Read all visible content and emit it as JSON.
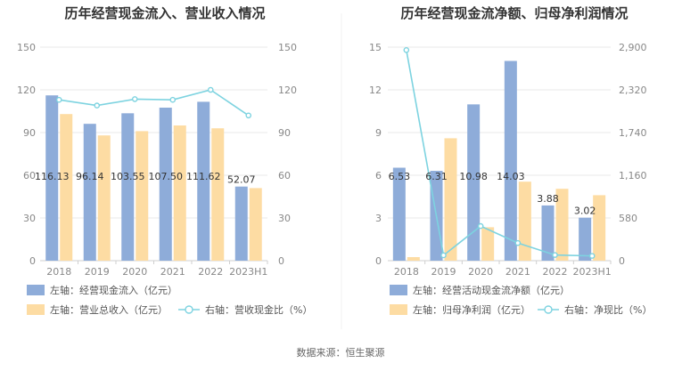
{
  "source": "数据来源：恒生聚源",
  "colors": {
    "bar_primary": "#8eacd9",
    "bar_secondary": "#fddca3",
    "line": "#7dd3e0"
  },
  "chart_data": [
    {
      "type": "bar",
      "title": "历年经营现金流入、营业收入情况",
      "categories": [
        "2018",
        "2019",
        "2020",
        "2021",
        "2022",
        "2023H1"
      ],
      "left_axis": {
        "ylim": [
          0,
          150
        ],
        "ticks": [
          "0",
          "30",
          "60",
          "90",
          "120",
          "150"
        ]
      },
      "right_axis": {
        "ylim": [
          0,
          150
        ],
        "ticks": [
          "0",
          "30",
          "60",
          "90",
          "120",
          "150"
        ]
      },
      "series": [
        {
          "name": "左轴：经营现金流入（亿元）",
          "axis": "left",
          "kind": "bar",
          "color": "#8eacd9",
          "values": [
            116.13,
            96.14,
            103.55,
            107.5,
            111.62,
            52.07
          ],
          "labels": [
            "116.13",
            "96.14",
            "103.55",
            "107.50",
            "111.62",
            "52.07"
          ]
        },
        {
          "name": "左轴：营业总收入（亿元）",
          "axis": "left",
          "kind": "bar",
          "color": "#fddca3",
          "values": [
            103,
            88,
            91,
            95,
            93,
            51
          ]
        },
        {
          "name": "右轴：营收现金比（%）",
          "axis": "right",
          "kind": "line",
          "color": "#7dd3e0",
          "values": [
            113,
            109,
            113.5,
            113,
            120,
            102
          ]
        }
      ]
    },
    {
      "type": "bar",
      "title": "历年经营现金流净额、归母净利润情况",
      "categories": [
        "2018",
        "2019",
        "2020",
        "2021",
        "2022",
        "2023H1"
      ],
      "left_axis": {
        "ylim": [
          0,
          15
        ],
        "ticks": [
          "0",
          "3",
          "6",
          "9",
          "12",
          "15"
        ]
      },
      "right_axis": {
        "ylim": [
          0,
          2900
        ],
        "ticks": [
          "0",
          "580",
          "1,160",
          "1,740",
          "2,320",
          "2,900"
        ]
      },
      "series": [
        {
          "name": "左轴：经营活动现金流净额（亿元）",
          "axis": "left",
          "kind": "bar",
          "color": "#8eacd9",
          "values": [
            6.53,
            6.31,
            10.98,
            14.03,
            3.88,
            3.02
          ],
          "labels": [
            "6.53",
            "6.31",
            "10.98",
            "14.03",
            "3.88",
            "3.02"
          ]
        },
        {
          "name": "左轴：归母净利润（亿元）",
          "axis": "left",
          "kind": "bar",
          "color": "#fddca3",
          "values": [
            0.25,
            8.6,
            2.35,
            5.55,
            5.05,
            4.6
          ]
        },
        {
          "name": "右轴：净现比（%）",
          "axis": "right",
          "kind": "line",
          "color": "#7dd3e0",
          "values": [
            2860,
            73,
            470,
            240,
            77,
            65
          ]
        }
      ]
    }
  ]
}
